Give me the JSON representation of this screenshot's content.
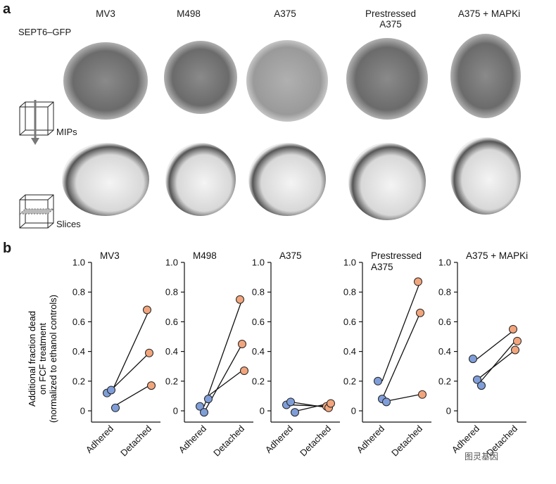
{
  "panel_a": {
    "letter": "a",
    "stain_label": "SEPT6–GFP",
    "mip_label": "MIPs",
    "slice_label": "Slices",
    "columns": [
      "MV3",
      "M498",
      "A375",
      "Prestressed\nA375",
      "A375 + MAPKi"
    ]
  },
  "panel_b": {
    "letter": "b",
    "ylabel": "Additional fraction dead on FCF treatment (normalized to ethanol controls)"
  },
  "chart_data": [
    {
      "type": "scatter",
      "title": "MV3",
      "categories": [
        "Adhered",
        "Detached"
      ],
      "ylim": [
        0,
        1.0
      ],
      "yticks": [
        "0",
        "0.2",
        "0.4",
        "0.6",
        "0.8",
        "1.0"
      ],
      "pairs": [
        [
          0.12,
          0.68
        ],
        [
          0.14,
          0.39
        ],
        [
          0.02,
          0.17
        ]
      ]
    },
    {
      "type": "scatter",
      "title": "M498",
      "categories": [
        "Adhered",
        "Detached"
      ],
      "ylim": [
        0,
        1.0
      ],
      "yticks": [
        "0",
        "0.2",
        "0.4",
        "0.6",
        "0.8",
        "1.0"
      ],
      "pairs": [
        [
          0.03,
          0.75
        ],
        [
          -0.01,
          0.45
        ],
        [
          0.08,
          0.27
        ]
      ]
    },
    {
      "type": "scatter",
      "title": "A375",
      "categories": [
        "Adhered",
        "Detached"
      ],
      "ylim": [
        0,
        1.0
      ],
      "yticks": [
        "0",
        "0.2",
        "0.4",
        "0.6",
        "0.8",
        "1.0"
      ],
      "pairs": [
        [
          0.04,
          0.03
        ],
        [
          0.06,
          0.02
        ],
        [
          -0.01,
          0.05
        ]
      ]
    },
    {
      "type": "scatter",
      "title": "Prestressed\nA375",
      "categories": [
        "Adhered",
        "Detached"
      ],
      "ylim": [
        0,
        1.0
      ],
      "yticks": [
        "0",
        "0.2",
        "0.4",
        "0.6",
        "0.8",
        "1.0"
      ],
      "pairs": [
        [
          0.2,
          0.87
        ],
        [
          0.08,
          0.66
        ],
        [
          0.06,
          0.11
        ]
      ]
    },
    {
      "type": "scatter",
      "title": "A375 + MAPKi",
      "categories": [
        "Adhered",
        "Detached"
      ],
      "ylim": [
        0,
        1.0
      ],
      "yticks": [
        "0",
        "0.2",
        "0.4",
        "0.6",
        "0.8",
        "1.0"
      ],
      "pairs": [
        [
          0.35,
          0.55
        ],
        [
          0.21,
          0.41
        ],
        [
          0.17,
          0.47
        ]
      ]
    }
  ],
  "colors": {
    "adhered": "#7f9ed9",
    "detached": "#f2a57c",
    "line": "#111111",
    "axis": "#111111"
  },
  "watermark": "图灵基因"
}
